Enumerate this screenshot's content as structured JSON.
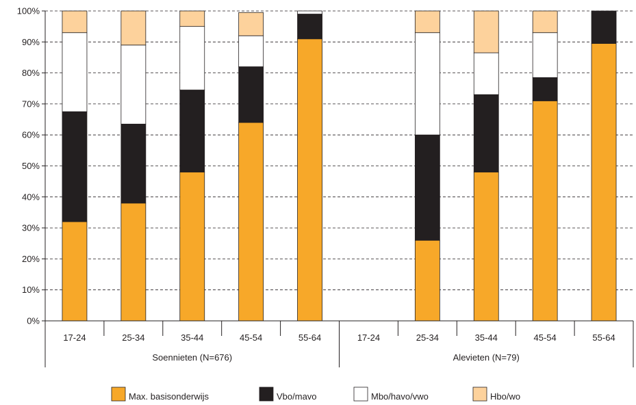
{
  "chart_data": {
    "type": "bar",
    "stacked": true,
    "grid": "horizontal dashed",
    "legend_position": "bottom",
    "ylim": [
      0,
      100
    ],
    "y_tick_labels": [
      "0%",
      "10%",
      "20%",
      "30%",
      "40%",
      "50%",
      "60%",
      "70%",
      "80%",
      "90%",
      "100%"
    ],
    "groups": [
      {
        "label": "Soennieten (N=676)",
        "categories": [
          "17-24",
          "25-34",
          "35-44",
          "45-54",
          "55-64"
        ]
      },
      {
        "label": "Alevieten (N=79)",
        "categories": [
          "17-24",
          "25-34",
          "35-44",
          "45-54",
          "55-64"
        ]
      }
    ],
    "series": [
      {
        "name": "Max. basisonderwijs",
        "color": "#f7a829",
        "values": [
          32,
          38,
          48,
          64,
          91,
          null,
          26,
          48,
          71,
          89.5
        ]
      },
      {
        "name": "Vbo/mavo",
        "color": "#231f20",
        "values": [
          35.5,
          25.5,
          26.5,
          18,
          8,
          null,
          34,
          25,
          7.5,
          10.5
        ]
      },
      {
        "name": "Mbo/havo/vwo",
        "color": "#ffffff",
        "values": [
          25.5,
          25.5,
          20.5,
          10,
          1,
          null,
          33,
          13.5,
          14.5,
          0
        ]
      },
      {
        "name": "Hbo/wo",
        "color": "#fdd29c",
        "values": [
          7,
          11,
          5,
          7.5,
          0,
          null,
          7,
          13.5,
          7,
          0
        ]
      }
    ]
  }
}
